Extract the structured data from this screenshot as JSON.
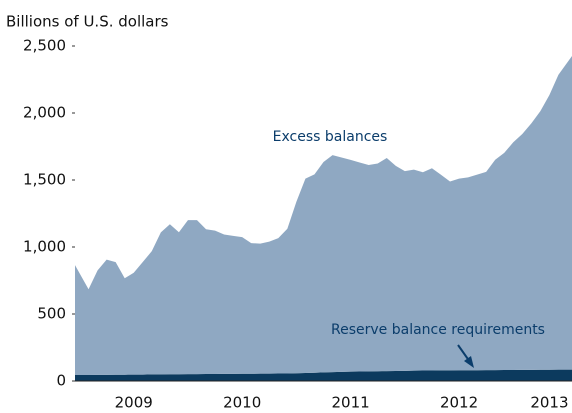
{
  "chart_data": {
    "type": "stacked_area",
    "y_axis_label": "Billions of U.S. dollars",
    "categories": [
      null,
      null,
      null,
      null,
      null,
      null,
      "2009",
      null,
      null,
      null,
      null,
      null,
      null,
      null,
      null,
      null,
      null,
      null,
      "2010",
      null,
      null,
      null,
      null,
      null,
      null,
      null,
      null,
      null,
      null,
      null,
      "2011",
      null,
      null,
      null,
      null,
      null,
      null,
      null,
      null,
      null,
      null,
      null,
      "2012",
      null,
      null,
      null,
      null,
      null,
      null,
      null,
      null,
      null,
      "2013",
      null,
      null
    ],
    "series": [
      {
        "name": "Reserve balance requirements",
        "color": "#0c3a5e",
        "values": [
          45,
          45,
          46,
          46,
          47,
          47,
          48,
          48,
          49,
          49,
          50,
          50,
          51,
          51,
          52,
          52,
          53,
          53,
          54,
          54,
          55,
          55,
          56,
          56,
          58,
          60,
          62,
          64,
          66,
          68,
          70,
          71,
          72,
          73,
          74,
          75,
          76,
          77,
          78,
          78,
          79,
          79,
          80,
          80,
          80,
          81,
          81,
          82,
          82,
          83,
          83,
          84,
          84,
          85,
          85
        ]
      },
      {
        "name": "Excess balances",
        "color": "#8fa8c2",
        "values": [
          820,
          640,
          780,
          860,
          840,
          720,
          760,
          840,
          920,
          1060,
          1120,
          1060,
          1150,
          1150,
          1080,
          1070,
          1040,
          1030,
          1020,
          975,
          970,
          985,
          1010,
          1080,
          1280,
          1450,
          1480,
          1570,
          1620,
          1600,
          1580,
          1560,
          1540,
          1550,
          1590,
          1530,
          1490,
          1500,
          1480,
          1510,
          1460,
          1410,
          1430,
          1440,
          1460,
          1480,
          1570,
          1620,
          1700,
          1760,
          1840,
          1930,
          2050,
          2200,
          2340
        ]
      }
    ],
    "ylim": [
      0,
      2500
    ],
    "yticks": [
      0,
      500,
      {
        "value": 1000,
        "label": "1,000"
      },
      {
        "value": 1500,
        "label": "1,500"
      },
      {
        "value": 2000,
        "label": "2,000"
      },
      {
        "value": 2500,
        "label": "2,500"
      }
    ],
    "grid": false
  }
}
